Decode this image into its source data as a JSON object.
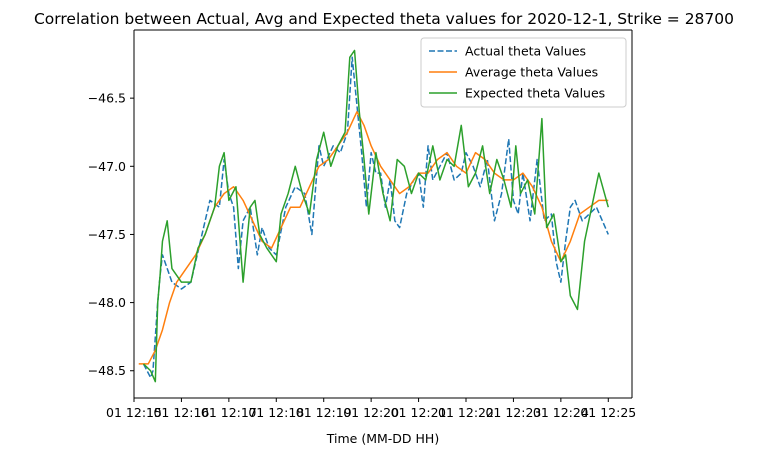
{
  "chart_data": {
    "type": "line",
    "title": "Correlation between Actual, Avg and Expected theta values for 2020-12-1, Strike = 28700",
    "xlabel": "Time (MM-DD HH)",
    "ylabel": "",
    "xlim": [
      15.0,
      25.5
    ],
    "ylim": [
      -48.7,
      -46.0
    ],
    "x_ticks": [
      {
        "value": 15.0,
        "label": "01 12:15"
      },
      {
        "value": 16.0,
        "label": "01 12:16"
      },
      {
        "value": 17.0,
        "label": "01 12:17"
      },
      {
        "value": 18.0,
        "label": "01 12:18"
      },
      {
        "value": 19.0,
        "label": "01 12:19"
      },
      {
        "value": 20.0,
        "label": "01 12:20"
      },
      {
        "value": 21.0,
        "label": "01 12:21"
      },
      {
        "value": 22.0,
        "label": "01 12:22"
      },
      {
        "value": 23.0,
        "label": "01 12:23"
      },
      {
        "value": 24.0,
        "label": "01 12:24"
      },
      {
        "value": 25.0,
        "label": "01 12:25"
      }
    ],
    "y_ticks": [
      {
        "value": -46.5,
        "label": "−46.5"
      },
      {
        "value": -47.0,
        "label": "−47.0"
      },
      {
        "value": -47.5,
        "label": "−47.5"
      },
      {
        "value": -48.0,
        "label": "−48.0"
      },
      {
        "value": -48.5,
        "label": "−48.5"
      }
    ],
    "legend": {
      "position": "top-right"
    },
    "series": [
      {
        "name": "Actual theta Values",
        "color": "#1f77b4",
        "dash": "dashed",
        "x": [
          15.2,
          15.35,
          15.4,
          15.5,
          15.55,
          15.6,
          15.7,
          15.8,
          16.0,
          16.2,
          16.4,
          16.6,
          16.8,
          16.9,
          17.0,
          17.1,
          17.2,
          17.3,
          17.45,
          17.6,
          17.7,
          17.85,
          18.0,
          18.2,
          18.4,
          18.6,
          18.75,
          18.9,
          19.0,
          19.2,
          19.35,
          19.5,
          19.6,
          19.7,
          19.8,
          19.9,
          20.0,
          20.1,
          20.2,
          20.3,
          20.4,
          20.5,
          20.6,
          20.75,
          20.9,
          21.0,
          21.1,
          21.2,
          21.3,
          21.45,
          21.6,
          21.75,
          21.9,
          22.0,
          22.15,
          22.3,
          22.45,
          22.6,
          22.75,
          22.9,
          23.0,
          23.1,
          23.2,
          23.35,
          23.5,
          23.65,
          23.8,
          23.9,
          24.0,
          24.1,
          24.2,
          24.3,
          24.45,
          24.6,
          24.75,
          25.0
        ],
        "y": [
          -48.45,
          -48.55,
          -48.5,
          -48.0,
          -47.8,
          -47.65,
          -47.75,
          -47.85,
          -47.9,
          -47.85,
          -47.55,
          -47.25,
          -47.3,
          -46.95,
          -47.2,
          -47.3,
          -47.75,
          -47.4,
          -47.3,
          -47.65,
          -47.45,
          -47.6,
          -47.65,
          -47.3,
          -47.15,
          -47.2,
          -47.5,
          -46.85,
          -47.0,
          -46.85,
          -46.9,
          -46.75,
          -46.2,
          -46.55,
          -46.9,
          -47.3,
          -46.9,
          -47.05,
          -47.05,
          -47.3,
          -47.1,
          -47.4,
          -47.45,
          -47.2,
          -47.1,
          -47.05,
          -47.3,
          -46.85,
          -47.1,
          -47.0,
          -46.9,
          -47.1,
          -47.05,
          -46.9,
          -47.0,
          -47.15,
          -46.95,
          -47.4,
          -47.2,
          -46.8,
          -47.25,
          -47.35,
          -47.05,
          -47.4,
          -46.95,
          -47.4,
          -47.35,
          -47.7,
          -47.85,
          -47.55,
          -47.3,
          -47.25,
          -47.4,
          -47.35,
          -47.3,
          -47.5
        ]
      },
      {
        "name": "Average theta Values",
        "color": "#ff7f0e",
        "dash": "solid",
        "x": [
          15.1,
          15.3,
          15.45,
          15.6,
          15.75,
          15.9,
          16.1,
          16.3,
          16.5,
          16.7,
          16.9,
          17.1,
          17.3,
          17.5,
          17.7,
          17.9,
          18.1,
          18.3,
          18.5,
          18.7,
          18.9,
          19.1,
          19.3,
          19.5,
          19.7,
          19.85,
          20.0,
          20.2,
          20.4,
          20.6,
          20.8,
          21.0,
          21.2,
          21.4,
          21.6,
          21.8,
          22.0,
          22.2,
          22.4,
          22.6,
          22.8,
          23.0,
          23.2,
          23.4,
          23.6,
          23.8,
          24.0,
          24.2,
          24.4,
          24.6,
          24.8,
          25.0
        ],
        "y": [
          -48.45,
          -48.45,
          -48.35,
          -48.2,
          -48.0,
          -47.85,
          -47.75,
          -47.65,
          -47.5,
          -47.3,
          -47.2,
          -47.15,
          -47.25,
          -47.4,
          -47.55,
          -47.6,
          -47.45,
          -47.3,
          -47.3,
          -47.15,
          -47.0,
          -46.95,
          -46.85,
          -46.75,
          -46.6,
          -46.7,
          -46.85,
          -47.0,
          -47.1,
          -47.2,
          -47.15,
          -47.05,
          -47.05,
          -46.95,
          -46.9,
          -47.0,
          -47.05,
          -46.9,
          -46.95,
          -47.05,
          -47.1,
          -47.1,
          -47.05,
          -47.15,
          -47.3,
          -47.55,
          -47.7,
          -47.55,
          -47.35,
          -47.3,
          -47.25,
          -47.25
        ]
      },
      {
        "name": "Expected theta Values",
        "color": "#2ca02c",
        "dash": "solid",
        "x": [
          15.2,
          15.35,
          15.45,
          15.5,
          15.55,
          15.6,
          15.7,
          15.8,
          16.0,
          16.2,
          16.35,
          16.5,
          16.7,
          16.8,
          16.9,
          17.0,
          17.15,
          17.3,
          17.45,
          17.55,
          17.65,
          17.8,
          18.0,
          18.1,
          18.25,
          18.4,
          18.55,
          18.7,
          18.85,
          19.0,
          19.15,
          19.3,
          19.45,
          19.55,
          19.65,
          19.75,
          19.85,
          19.95,
          20.1,
          20.25,
          20.4,
          20.55,
          20.7,
          20.85,
          21.0,
          21.15,
          21.3,
          21.45,
          21.6,
          21.75,
          21.9,
          22.05,
          22.2,
          22.35,
          22.5,
          22.65,
          22.8,
          22.95,
          23.05,
          23.15,
          23.3,
          23.45,
          23.6,
          23.7,
          23.85,
          24.0,
          24.1,
          24.2,
          24.35,
          24.5,
          24.65,
          24.8,
          25.0
        ],
        "y": [
          -48.45,
          -48.5,
          -48.58,
          -48.0,
          -47.8,
          -47.55,
          -47.4,
          -47.75,
          -47.85,
          -47.85,
          -47.6,
          -47.5,
          -47.3,
          -47.0,
          -46.9,
          -47.25,
          -47.15,
          -47.85,
          -47.3,
          -47.25,
          -47.5,
          -47.6,
          -47.7,
          -47.35,
          -47.2,
          -47.0,
          -47.2,
          -47.35,
          -46.95,
          -46.75,
          -47.0,
          -46.85,
          -46.75,
          -46.2,
          -46.15,
          -46.6,
          -46.95,
          -47.35,
          -46.9,
          -47.2,
          -47.4,
          -46.95,
          -47.0,
          -47.2,
          -47.05,
          -47.1,
          -46.85,
          -47.1,
          -46.95,
          -47.0,
          -46.7,
          -47.15,
          -47.05,
          -46.85,
          -47.2,
          -46.95,
          -47.1,
          -47.3,
          -46.85,
          -47.2,
          -47.1,
          -47.35,
          -46.65,
          -47.45,
          -47.35,
          -47.7,
          -47.65,
          -47.95,
          -48.05,
          -47.55,
          -47.3,
          -47.05,
          -47.3
        ]
      }
    ]
  }
}
